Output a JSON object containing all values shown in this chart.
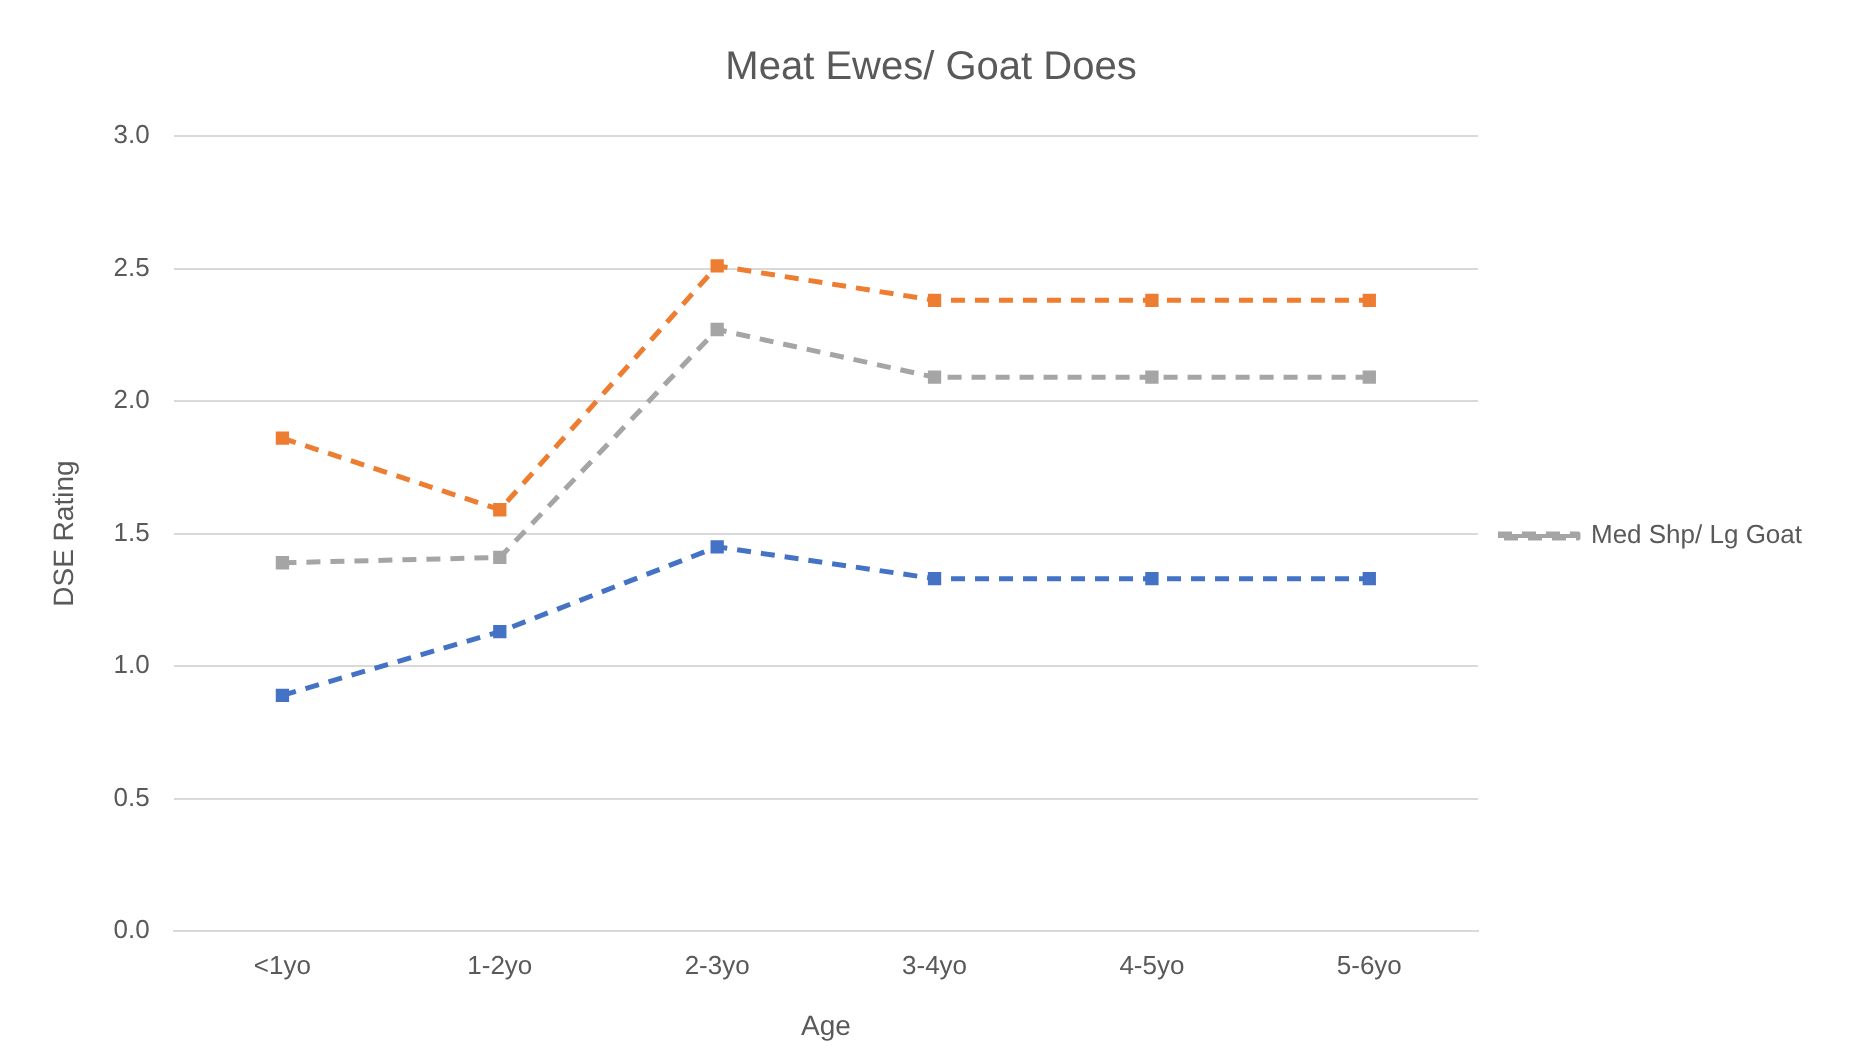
{
  "chart_data": {
    "type": "line",
    "title": "Meat Ewes/ Goat Does",
    "xlabel": "Age",
    "ylabel": "DSE Rating",
    "categories": [
      "<1yo",
      "1-2yo",
      "2-3yo",
      "3-4yo",
      "4-5yo",
      "5-6yo"
    ],
    "series": [
      {
        "color": "#4472c4",
        "values": [
          0.89,
          1.13,
          1.45,
          1.33,
          1.33,
          1.33
        ]
      },
      {
        "color": "#ed7d31",
        "values": [
          1.86,
          1.59,
          2.51,
          2.38,
          2.38,
          2.38
        ]
      },
      {
        "name": "Med Shp/ Lg Goat",
        "color": "#a5a5a5",
        "values": [
          1.39,
          1.41,
          2.27,
          2.09,
          2.09,
          2.09
        ]
      }
    ],
    "ylim": [
      0,
      3
    ],
    "yticks": [
      {
        "value": 0,
        "label": "0.0"
      },
      {
        "value": 0.5,
        "label": "0.5"
      },
      {
        "value": 1,
        "label": "1.0"
      },
      {
        "value": 1.5,
        "label": "1.5"
      },
      {
        "value": 2,
        "label": "2.0"
      },
      {
        "value": 2.5,
        "label": "2.5"
      },
      {
        "value": 3,
        "label": "3.0"
      }
    ],
    "grid": "y",
    "legend": "right",
    "line_style": "dashed",
    "marker": "square"
  }
}
